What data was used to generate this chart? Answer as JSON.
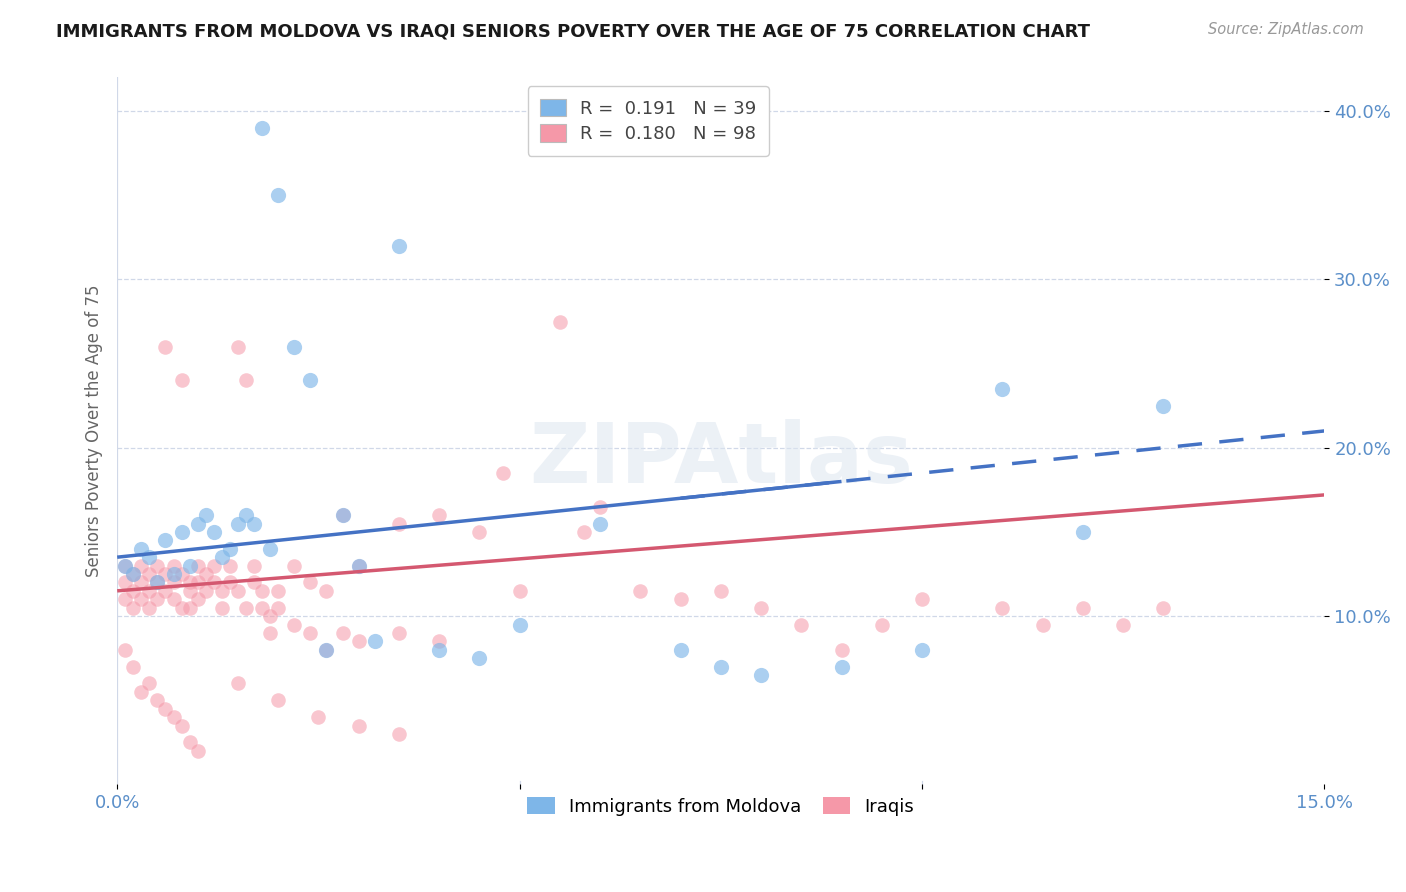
{
  "title": "IMMIGRANTS FROM MOLDOVA VS IRAQI SENIORS POVERTY OVER THE AGE OF 75 CORRELATION CHART",
  "source": "Source: ZipAtlas.com",
  "ylabel": "Seniors Poverty Over the Age of 75",
  "xlim": [
    0.0,
    0.15
  ],
  "ylim": [
    0.0,
    0.42
  ],
  "yticks": [
    0.1,
    0.2,
    0.3,
    0.4
  ],
  "ytick_labels": [
    "10.0%",
    "20.0%",
    "30.0%",
    "40.0%"
  ],
  "legend_label1": "Immigrants from Moldova",
  "legend_label2": "Iraqis",
  "blue_scatter_color": "#7eb6e8",
  "pink_scatter_color": "#f598a8",
  "blue_line_color": "#4472c4",
  "pink_line_color": "#d45870",
  "axis_color": "#5b8fc9",
  "tick_color": "#5b8fc9",
  "grid_color": "#d0d8e8",
  "background_color": "#ffffff",
  "blue_intercept": 0.135,
  "blue_slope": 0.5,
  "pink_intercept": 0.115,
  "pink_slope": 0.38,
  "moldova_x": [
    0.001,
    0.002,
    0.003,
    0.004,
    0.005,
    0.006,
    0.007,
    0.008,
    0.009,
    0.01,
    0.011,
    0.012,
    0.013,
    0.014,
    0.015,
    0.016,
    0.017,
    0.018,
    0.019,
    0.02,
    0.022,
    0.024,
    0.026,
    0.028,
    0.03,
    0.032,
    0.035,
    0.04,
    0.045,
    0.05,
    0.06,
    0.07,
    0.075,
    0.08,
    0.09,
    0.1,
    0.11,
    0.12,
    0.13
  ],
  "moldova_y": [
    0.13,
    0.125,
    0.14,
    0.135,
    0.12,
    0.145,
    0.125,
    0.15,
    0.13,
    0.155,
    0.16,
    0.15,
    0.135,
    0.14,
    0.155,
    0.16,
    0.155,
    0.39,
    0.14,
    0.35,
    0.26,
    0.24,
    0.08,
    0.16,
    0.13,
    0.085,
    0.32,
    0.08,
    0.075,
    0.095,
    0.155,
    0.08,
    0.07,
    0.065,
    0.07,
    0.08,
    0.235,
    0.15,
    0.225
  ],
  "iraqi_x": [
    0.001,
    0.001,
    0.001,
    0.002,
    0.002,
    0.002,
    0.003,
    0.003,
    0.003,
    0.004,
    0.004,
    0.004,
    0.005,
    0.005,
    0.005,
    0.006,
    0.006,
    0.006,
    0.007,
    0.007,
    0.007,
    0.008,
    0.008,
    0.008,
    0.009,
    0.009,
    0.009,
    0.01,
    0.01,
    0.01,
    0.011,
    0.011,
    0.012,
    0.012,
    0.013,
    0.013,
    0.014,
    0.014,
    0.015,
    0.015,
    0.016,
    0.016,
    0.017,
    0.017,
    0.018,
    0.018,
    0.019,
    0.019,
    0.02,
    0.02,
    0.022,
    0.022,
    0.024,
    0.024,
    0.026,
    0.026,
    0.028,
    0.028,
    0.03,
    0.03,
    0.035,
    0.035,
    0.04,
    0.04,
    0.045,
    0.048,
    0.05,
    0.055,
    0.058,
    0.06,
    0.065,
    0.07,
    0.075,
    0.08,
    0.085,
    0.09,
    0.095,
    0.1,
    0.11,
    0.115,
    0.12,
    0.125,
    0.13,
    0.001,
    0.002,
    0.003,
    0.004,
    0.005,
    0.006,
    0.007,
    0.008,
    0.009,
    0.01,
    0.015,
    0.02,
    0.025,
    0.03,
    0.035
  ],
  "iraqi_y": [
    0.12,
    0.13,
    0.11,
    0.115,
    0.125,
    0.105,
    0.13,
    0.12,
    0.11,
    0.125,
    0.115,
    0.105,
    0.12,
    0.13,
    0.11,
    0.125,
    0.26,
    0.115,
    0.13,
    0.12,
    0.11,
    0.125,
    0.24,
    0.105,
    0.12,
    0.115,
    0.105,
    0.13,
    0.12,
    0.11,
    0.125,
    0.115,
    0.13,
    0.12,
    0.115,
    0.105,
    0.13,
    0.12,
    0.26,
    0.115,
    0.24,
    0.105,
    0.13,
    0.12,
    0.115,
    0.105,
    0.09,
    0.1,
    0.115,
    0.105,
    0.13,
    0.095,
    0.12,
    0.09,
    0.115,
    0.08,
    0.16,
    0.09,
    0.13,
    0.085,
    0.155,
    0.09,
    0.16,
    0.085,
    0.15,
    0.185,
    0.115,
    0.275,
    0.15,
    0.165,
    0.115,
    0.11,
    0.115,
    0.105,
    0.095,
    0.08,
    0.095,
    0.11,
    0.105,
    0.095,
    0.105,
    0.095,
    0.105,
    0.08,
    0.07,
    0.055,
    0.06,
    0.05,
    0.045,
    0.04,
    0.035,
    0.025,
    0.02,
    0.06,
    0.05,
    0.04,
    0.035,
    0.03
  ]
}
